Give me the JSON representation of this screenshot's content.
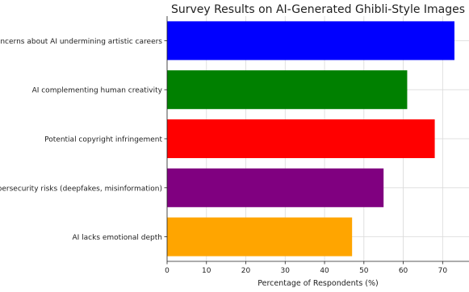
{
  "chart_data": {
    "type": "bar",
    "orientation": "horizontal",
    "title": "Survey Results on AI-Generated Ghibli-Style Images",
    "xlabel": "Percentage of Respondents (%)",
    "ylabel": "",
    "categories": [
      "Concerns about AI undermining artistic careers",
      "AI complementing human creativity",
      "Potential copyright infringement",
      "Cybersecurity risks (deepfakes, misinformation)",
      "AI lacks emotional depth"
    ],
    "values": [
      73,
      61,
      68,
      55,
      47
    ],
    "colors": [
      "#0000ff",
      "#008000",
      "#ff0000",
      "#800080",
      "#ffa500"
    ],
    "xlim": [
      0,
      76.7
    ],
    "xticks": [
      0,
      10,
      20,
      30,
      40,
      50,
      60,
      70
    ],
    "grid": true
  }
}
